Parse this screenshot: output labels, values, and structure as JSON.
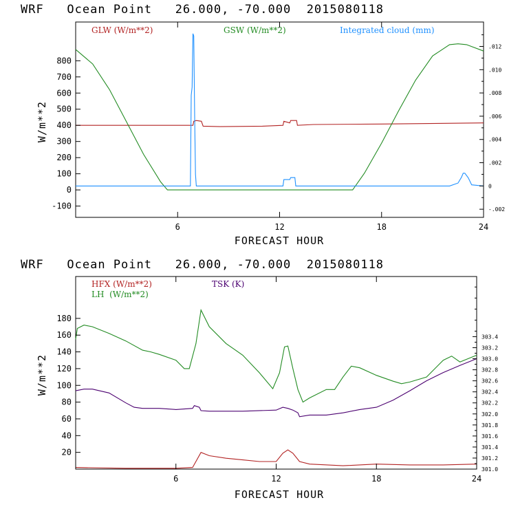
{
  "chart_data": [
    {
      "type": "line",
      "title": "WRF   Ocean Point   26.000, -70.000  2015080118",
      "xlabel": "FORECAST HOUR",
      "ylabel": "W/m**2",
      "xlim": [
        0,
        24
      ],
      "ylim": [
        -170,
        1040
      ],
      "xticks": [
        0,
        6,
        12,
        18,
        24
      ],
      "xtick_labels": [
        "",
        "6",
        "12",
        "18",
        "24"
      ],
      "yticks": [
        -100,
        0,
        100,
        200,
        300,
        400,
        500,
        600,
        700,
        800
      ],
      "ytick_labels": [
        "-100",
        "0",
        "100",
        "200",
        "300",
        "400",
        "500",
        "600",
        "700",
        "800"
      ],
      "y2lim": [
        -0.0027,
        0.0141
      ],
      "y2ticks": [
        -0.002,
        0,
        0.002,
        0.004,
        0.006,
        0.008,
        0.01,
        0.012
      ],
      "y2tick_labels": [
        "-.002",
        "0",
        ".002",
        ".004",
        ".006",
        ".008",
        ".010",
        ".012"
      ],
      "grid": false,
      "legend_position": "top",
      "series": [
        {
          "name": "GLW (W/m**2)",
          "color": "#b22222",
          "axis": "left",
          "x": [
            0,
            6.9,
            6.95,
            7.1,
            7.4,
            7.5,
            8.5,
            11.0,
            12.2,
            12.25,
            12.6,
            12.65,
            13.0,
            13.05,
            14,
            18,
            24
          ],
          "y": [
            400,
            400,
            425,
            430,
            425,
            395,
            392,
            395,
            400,
            425,
            415,
            430,
            430,
            400,
            405,
            408,
            415
          ]
        },
        {
          "name": "GSW (W/m**2)",
          "color": "#228b22",
          "axis": "left",
          "x": [
            0,
            1,
            2,
            3,
            4,
            5,
            5.4,
            16.3,
            17,
            18,
            19,
            20,
            21,
            22,
            22.5,
            23,
            24
          ],
          "y": [
            870,
            780,
            620,
            420,
            220,
            50,
            0,
            0,
            105,
            290,
            490,
            680,
            830,
            900,
            905,
            900,
            860
          ]
        },
        {
          "name": "Integrated cloud (mm)",
          "color": "#1e90ff",
          "axis": "right",
          "x": [
            0,
            6.75,
            6.8,
            6.85,
            6.9,
            6.95,
            7.0,
            7.05,
            7.1,
            12.2,
            12.25,
            12.6,
            12.65,
            12.9,
            12.95,
            22,
            22.5,
            22.7,
            22.8,
            22.9,
            23.1,
            23.3,
            24
          ],
          "y": [
            0,
            0,
            0.0078,
            0.0085,
            0.0131,
            0.0129,
            0.006,
            0.001,
            0,
            0,
            0.00055,
            0.00055,
            0.00072,
            0.00072,
            0,
            0,
            0.00025,
            0.00075,
            0.0011,
            0.0011,
            0.0007,
            0.0001,
            0
          ]
        }
      ]
    },
    {
      "type": "line",
      "title": "WRF   Ocean Point   26.000, -70.000  2015080118",
      "xlabel": "FORECAST HOUR",
      "ylabel": "W/m**2",
      "xlim": [
        0,
        24
      ],
      "ylim": [
        0,
        230
      ],
      "xticks": [
        0,
        6,
        12,
        18,
        24
      ],
      "xtick_labels": [
        "",
        "6",
        "12",
        "18",
        "24"
      ],
      "yticks": [
        20,
        40,
        60,
        80,
        100,
        120,
        140,
        160,
        180
      ],
      "ytick_labels": [
        "20",
        "40",
        "60",
        "80",
        "100",
        "120",
        "140",
        "160",
        "180"
      ],
      "y2lim": [
        301.0,
        304.49
      ],
      "y2ticks": [
        301.0,
        301.2,
        301.4,
        301.6,
        301.8,
        302.0,
        302.2,
        302.4,
        302.6,
        302.8,
        303.0,
        303.2,
        303.4
      ],
      "y2tick_labels": [
        "301.0",
        "301.2",
        "301.4",
        "301.6",
        "301.8",
        "302.0",
        "302.2",
        "302.4",
        "302.6",
        "302.8",
        "303.0",
        "303.2",
        "303.4"
      ],
      "grid": false,
      "legend_position": "top",
      "series": [
        {
          "name": "HFX (W/m**2)",
          "color": "#b22222",
          "axis": "left",
          "x": [
            0,
            3,
            6,
            7,
            7.5,
            8,
            9,
            10,
            11,
            12,
            12.4,
            12.7,
            13,
            13.4,
            14,
            16,
            18,
            20,
            22,
            24
          ],
          "y": [
            2,
            1,
            1,
            2,
            20,
            16,
            13,
            11,
            9,
            9,
            19,
            23,
            19,
            9,
            6,
            4,
            6,
            5,
            5,
            6
          ]
        },
        {
          "name": "LH  (W/m**2)",
          "color": "#228b22",
          "axis": "left",
          "x": [
            0,
            0.1,
            0.5,
            1,
            2,
            3,
            4,
            4.5,
            5,
            6,
            6.5,
            6.8,
            7.2,
            7.5,
            8,
            9,
            10,
            11,
            11.8,
            12.2,
            12.5,
            12.7,
            13,
            13.3,
            13.6,
            14,
            15,
            15.5,
            16,
            16.5,
            17,
            18,
            19,
            19.5,
            20,
            21,
            22,
            22.5,
            23,
            24
          ],
          "y": [
            155,
            168,
            172,
            170,
            162,
            153,
            142,
            140,
            137,
            130,
            120,
            120,
            150,
            190,
            170,
            150,
            136,
            115,
            96,
            115,
            146,
            147,
            120,
            95,
            80,
            85,
            95,
            95,
            110,
            123,
            121,
            112,
            105,
            102,
            104,
            110,
            130,
            135,
            128,
            136
          ]
        },
        {
          "name": "TSK (K)",
          "color": "#4b0070",
          "axis": "right",
          "x": [
            0,
            0.5,
            1,
            2,
            3,
            3.5,
            4,
            5,
            6,
            7,
            7.1,
            7.4,
            7.5,
            8,
            10,
            12,
            12.4,
            12.7,
            13,
            13.3,
            13.4,
            14,
            15,
            16,
            17,
            18,
            19,
            20,
            21,
            22,
            23,
            24
          ],
          "y": [
            302.42,
            302.45,
            302.45,
            302.38,
            302.2,
            302.12,
            302.1,
            302.1,
            302.08,
            302.1,
            302.15,
            302.12,
            302.06,
            302.05,
            302.05,
            302.07,
            302.12,
            302.1,
            302.07,
            302.02,
            301.95,
            301.98,
            301.98,
            302.02,
            302.08,
            302.12,
            302.25,
            302.42,
            302.6,
            302.75,
            302.88,
            303.0
          ]
        }
      ]
    }
  ]
}
